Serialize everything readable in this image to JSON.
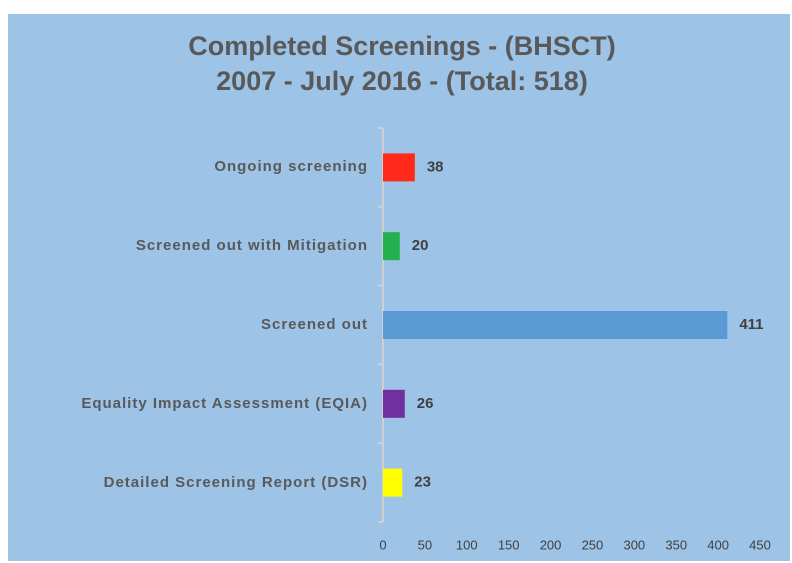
{
  "chart_data": {
    "type": "bar",
    "orientation": "horizontal",
    "title": "Completed Screenings - (BHSCT)",
    "subtitle": "2007 - July 2016 - (Total: 518)",
    "categories": [
      "Ongoing screening",
      "Screened out with Mitigation",
      "Screened out",
      "Equality Impact Assessment (EQIA)",
      "Detailed Screening Report (DSR)"
    ],
    "values": [
      38,
      20,
      411,
      26,
      23
    ],
    "colors": [
      "#ff2a1a",
      "#22b14c",
      "#5b9bd5",
      "#7030a0",
      "#ffff00"
    ],
    "xlim": [
      0,
      450
    ],
    "xticks": [
      0,
      50,
      100,
      150,
      200,
      250,
      300,
      350,
      400,
      450
    ],
    "grid": false
  }
}
